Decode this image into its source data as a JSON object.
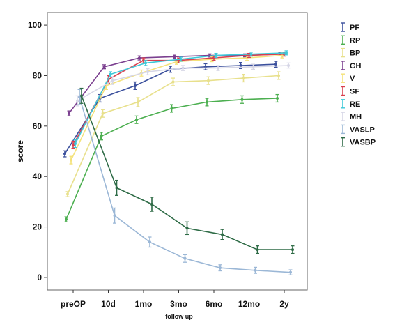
{
  "chart_data": {
    "type": "line",
    "xlabel": "follow up",
    "ylabel": "score",
    "categories": [
      "preOP",
      "10d",
      "1mo",
      "3mo",
      "6mo",
      "12mo",
      "2y"
    ],
    "yticks": [
      0,
      20,
      40,
      60,
      80,
      100
    ],
    "ylim": [
      -5,
      105
    ],
    "grid": false,
    "legend_position": "right",
    "series": [
      {
        "name": "PF",
        "color": "#3a4f9c",
        "values": [
          49,
          71,
          76,
          82.5,
          83.5,
          84,
          84.5
        ],
        "err": [
          1.2,
          1.5,
          1.5,
          1.2,
          1.2,
          1.2,
          1.2
        ]
      },
      {
        "name": "RP",
        "color": "#4caf50",
        "values": [
          23,
          56,
          62.5,
          67,
          69.5,
          70.5,
          71
        ],
        "err": [
          1.0,
          1.5,
          1.5,
          1.5,
          1.5,
          1.5,
          1.5
        ]
      },
      {
        "name": "BP",
        "color": "#e8e08c",
        "values": [
          33,
          65,
          69.5,
          77.5,
          78,
          79,
          80
        ],
        "err": [
          1.0,
          1.5,
          1.8,
          1.5,
          1.5,
          1.5,
          1.5
        ]
      },
      {
        "name": "GH",
        "color": "#7b3f8f",
        "values": [
          65,
          83.5,
          87,
          87.5,
          88,
          88,
          88.5
        ],
        "err": [
          1.0,
          0.8,
          0.8,
          0.6,
          0.6,
          0.6,
          0.6
        ]
      },
      {
        "name": "V",
        "color": "#f4e27a",
        "values": [
          46.5,
          76,
          81,
          85.5,
          86.5,
          87,
          88
        ],
        "err": [
          1.5,
          1.5,
          1.2,
          1.0,
          1.0,
          1.0,
          1.0
        ]
      },
      {
        "name": "SF",
        "color": "#d9404e",
        "values": [
          52.5,
          78.5,
          86,
          86,
          87,
          88,
          88.5
        ],
        "err": [
          1.5,
          1.5,
          1.0,
          1.0,
          1.0,
          0.8,
          0.8
        ]
      },
      {
        "name": "RE",
        "color": "#3ec8d8",
        "values": [
          53,
          80.5,
          85,
          86.5,
          88,
          88.5,
          89
        ],
        "err": [
          1.5,
          1.0,
          1.0,
          0.8,
          0.8,
          0.8,
          0.8
        ]
      },
      {
        "name": "MH",
        "color": "#d6d6e6",
        "values": [
          70,
          78,
          81.5,
          83,
          83,
          83.5,
          84
        ],
        "err": [
          2.0,
          1.5,
          1.2,
          1.0,
          1.0,
          1.0,
          1.0
        ]
      },
      {
        "name": "VASLP",
        "color": "#9bb7d6",
        "values": [
          71.5,
          24.5,
          14,
          7.5,
          3.8,
          2.8,
          2
        ],
        "err": [
          3.0,
          3.0,
          2.0,
          1.5,
          1.2,
          1.2,
          1.0
        ]
      },
      {
        "name": "VASBP",
        "color": "#2e6b46",
        "values": [
          72,
          35.5,
          29,
          19.5,
          17,
          11,
          11
        ],
        "err": [
          3.0,
          3.0,
          2.8,
          2.5,
          2.0,
          1.5,
          1.5
        ]
      }
    ]
  }
}
